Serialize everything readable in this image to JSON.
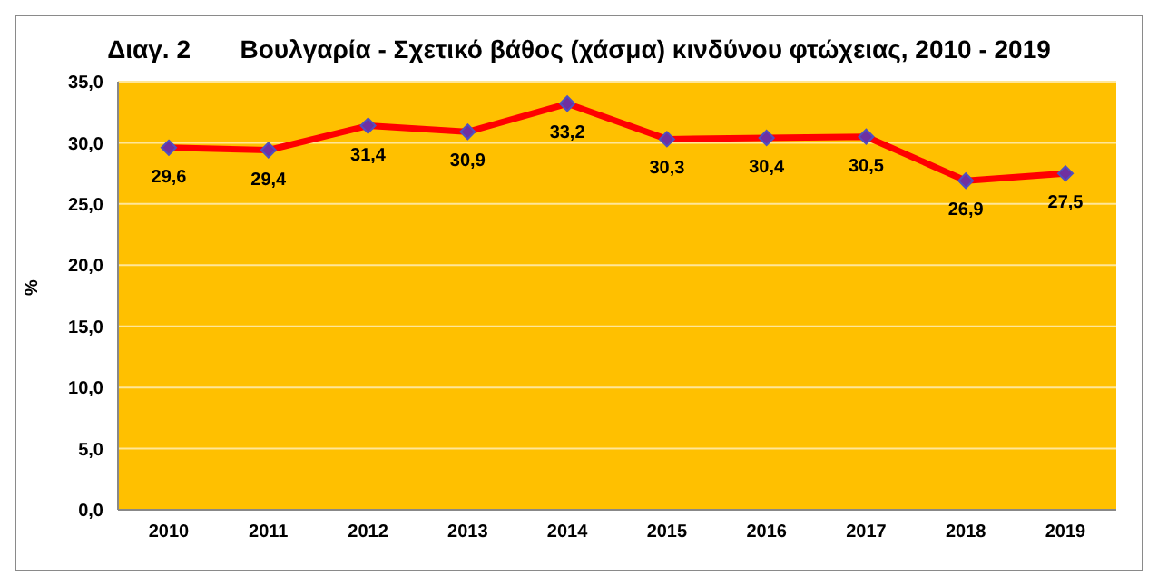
{
  "chart_data": {
    "type": "line",
    "title": "Διαγ. 2       Βουλγαρία - Σχετικό βάθος (χάσμα) κινδύνου φτώχειας, 2010 - 2019",
    "ylabel": "%",
    "categories": [
      "2010",
      "2011",
      "2012",
      "2013",
      "2014",
      "2015",
      "2016",
      "2017",
      "2018",
      "2019"
    ],
    "series": [
      {
        "color": "#ff0000",
        "values": [
          29.6,
          29.4,
          31.4,
          30.9,
          33.2,
          30.3,
          30.4,
          30.5,
          26.9,
          27.5
        ],
        "value_labels": [
          "29,6",
          "29,4",
          "31,4",
          "30,9",
          "33,2",
          "30,3",
          "30,4",
          "30,5",
          "26,9",
          "27,5"
        ]
      }
    ],
    "ylim": [
      0,
      35
    ],
    "yticks": [
      {
        "value": 0,
        "label": "0,0"
      },
      {
        "value": 5,
        "label": "5,0"
      },
      {
        "value": 10,
        "label": "10,0"
      },
      {
        "value": 15,
        "label": "15,0"
      },
      {
        "value": 20,
        "label": "20,0"
      },
      {
        "value": 25,
        "label": "25,0"
      },
      {
        "value": 30,
        "label": "30,0"
      },
      {
        "value": 35,
        "label": "35,0"
      }
    ],
    "grid": "y",
    "marker": "diamond",
    "line_style": "solid"
  }
}
